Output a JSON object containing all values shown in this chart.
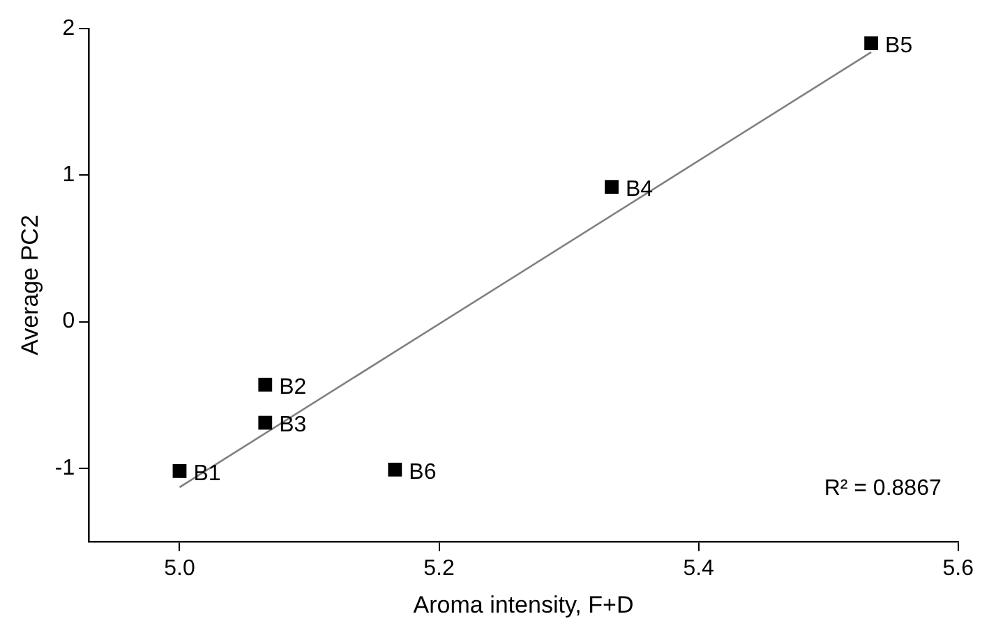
{
  "chart_data": {
    "type": "scatter",
    "xlabel": "Aroma intensity, F+D",
    "ylabel": "Average PC2",
    "xlim": [
      4.93,
      5.6
    ],
    "xticks": [
      {
        "value": 5.0,
        "label": "5.0"
      },
      5.2,
      5.4,
      5.6
    ],
    "ylim": [
      -1.5,
      2
    ],
    "yticks": [
      -1,
      0,
      1,
      2
    ],
    "grid": false,
    "legend": false,
    "marker": "square",
    "series": [
      {
        "type": "scatter",
        "color": "#000000",
        "x": [
          5.0,
          5.066,
          5.066,
          5.333,
          5.533,
          5.166
        ],
        "values": [
          -1.02,
          -0.43,
          -0.69,
          0.92,
          1.9,
          -1.01
        ]
      },
      {
        "type": "line",
        "color": "#808080",
        "marker": "none",
        "line_style": "solid",
        "x": [
          5.0,
          5.533
        ],
        "values": [
          -1.13,
          1.84
        ]
      }
    ],
    "annotations": [
      {
        "text": "B1",
        "x": 5.0,
        "y": -1.02
      },
      {
        "text": "B2",
        "x": 5.066,
        "y": -0.43
      },
      {
        "text": "B3",
        "x": 5.066,
        "y": -0.69
      },
      {
        "text": "B4",
        "x": 5.333,
        "y": 0.92
      },
      {
        "text": "B5",
        "x": 5.533,
        "y": 1.9
      },
      {
        "text": "B6",
        "x": 5.166,
        "y": -1.01
      },
      "R² = 0.8867"
    ]
  }
}
